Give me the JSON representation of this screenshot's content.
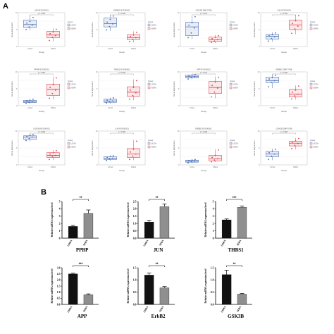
{
  "panel_labels": {
    "a": "A",
    "b": "B"
  },
  "colors": {
    "g1": "#4a6fb5",
    "g2": "#e0414e",
    "bar_dark": "#111111",
    "bar_light": "#8f8f8f",
    "panel_bg": "#ffffff"
  },
  "boxplot_common": {
    "xlabel": "Group",
    "ylabel": "Gene Expression",
    "legend_title": "Group",
    "groups": [
      "UCSA",
      "NSRA"
    ]
  },
  "chart_data": [
    {
      "type": "boxplot",
      "panel": "A",
      "title": "APH   BYD00001",
      "pvalue": "0.006",
      "ylim": [
        0,
        10
      ],
      "legend": "right",
      "groups": [
        {
          "name": "UCSA",
          "q1": 5.6,
          "median": 6.5,
          "q3": 7.8,
          "whisker_low": 4.8,
          "whisker_high": 9.2,
          "points": [
            5.0,
            5.8,
            6.3,
            6.9,
            7.4,
            8.6
          ]
        },
        {
          "name": "NSRA",
          "q1": 2.6,
          "median": 3.4,
          "q3": 4.5,
          "whisker_low": 1.5,
          "whisker_high": 5.4,
          "points": [
            1.8,
            2.7,
            3.2,
            3.8,
            4.3,
            5.1
          ]
        }
      ]
    },
    {
      "type": "boxplot",
      "panel": "A",
      "title": "ERBB2   BYD00001",
      "pvalue": "0.009",
      "ylim": [
        0,
        10
      ],
      "legend": "right",
      "groups": [
        {
          "name": "UCSA",
          "q1": 5.8,
          "median": 6.8,
          "q3": 8.4,
          "whisker_low": 4.6,
          "whisker_high": 9.3,
          "points": [
            4.9,
            5.9,
            6.7,
            7.2,
            8.0,
            9.0
          ]
        },
        {
          "name": "NSRA",
          "q1": 2.0,
          "median": 2.6,
          "q3": 3.5,
          "whisker_low": 1.2,
          "whisker_high": 4.5,
          "points": [
            1.5,
            2.1,
            2.6,
            3.0,
            3.4,
            4.2
          ]
        }
      ]
    },
    {
      "type": "boxplot",
      "panel": "A",
      "title": "GSK3B   DBP 0788",
      "pvalue": "0.014",
      "ylim": [
        0,
        10
      ],
      "legend": "right",
      "groups": [
        {
          "name": "UCSA",
          "q1": 3.2,
          "median": 5.8,
          "q3": 7.2,
          "whisker_low": 2.2,
          "whisker_high": 9.0,
          "points": [
            2.6,
            4.0,
            5.5,
            6.3,
            7.0,
            8.8
          ]
        },
        {
          "name": "NSRA",
          "q1": 1.5,
          "median": 2.0,
          "q3": 2.8,
          "whisker_low": 1.0,
          "whisker_high": 3.4,
          "points": [
            1.2,
            1.6,
            2.0,
            2.3,
            2.7,
            3.2
          ]
        }
      ]
    },
    {
      "type": "boxplot",
      "panel": "A",
      "title": "JUN   BYD00001",
      "pvalue": "0.006",
      "ylim": [
        0,
        10
      ],
      "legend": "right",
      "groups": [
        {
          "name": "UCSA",
          "q1": 2.2,
          "median": 3.0,
          "q3": 3.6,
          "whisker_low": 1.4,
          "whisker_high": 4.2,
          "points": [
            1.6,
            2.4,
            2.9,
            3.2,
            3.5,
            4.0
          ]
        },
        {
          "name": "NSRA",
          "q1": 5.0,
          "median": 6.4,
          "q3": 7.8,
          "whisker_low": 3.6,
          "whisker_high": 9.4,
          "points": [
            3.9,
            5.2,
            6.0,
            6.8,
            7.6,
            9.1
          ]
        }
      ]
    },
    {
      "type": "boxplot",
      "panel": "A",
      "title": "PPBP   BYD00001",
      "pvalue": "0.006",
      "ylim": [
        0,
        10
      ],
      "legend": "right",
      "groups": [
        {
          "name": "UCSA",
          "q1": 0.9,
          "median": 1.2,
          "q3": 1.6,
          "whisker_low": 0.6,
          "whisker_high": 2.0,
          "points": [
            0.7,
            1.0,
            1.2,
            1.4,
            1.6,
            1.9
          ]
        },
        {
          "name": "NSRA",
          "q1": 3.0,
          "median": 4.8,
          "q3": 6.4,
          "whisker_low": 1.8,
          "whisker_high": 8.6,
          "points": [
            2.2,
            3.6,
            4.6,
            5.4,
            6.2,
            8.2
          ]
        }
      ]
    },
    {
      "type": "boxplot",
      "panel": "A",
      "title": "THBS1   BYD00001",
      "pvalue": "0.006",
      "ylim": [
        0,
        10
      ],
      "legend": "right",
      "groups": [
        {
          "name": "UCSA",
          "q1": 1.0,
          "median": 1.4,
          "q3": 1.9,
          "whisker_low": 0.6,
          "whisker_high": 2.4,
          "points": [
            0.8,
            1.1,
            1.4,
            1.6,
            1.9,
            2.3
          ]
        },
        {
          "name": "NSRA",
          "q1": 2.8,
          "median": 4.0,
          "q3": 5.6,
          "whisker_low": 1.6,
          "whisker_high": 7.8,
          "points": [
            1.9,
            3.0,
            3.8,
            4.6,
            5.4,
            7.4
          ]
        }
      ]
    },
    {
      "type": "boxplot",
      "panel": "A",
      "title": "APP   BYD00001",
      "pvalue": "0.014",
      "ylim": [
        0,
        10
      ],
      "legend": "right",
      "groups": [
        {
          "name": "UCSA",
          "q1": 8.2,
          "median": 8.6,
          "q3": 9.0,
          "whisker_low": 7.8,
          "whisker_high": 9.3,
          "points": [
            7.9,
            8.3,
            8.6,
            8.8,
            9.0,
            9.2
          ]
        },
        {
          "name": "NSRA",
          "q1": 3.6,
          "median": 5.4,
          "q3": 7.2,
          "whisker_low": 2.2,
          "whisker_high": 8.6,
          "points": [
            2.6,
            4.0,
            5.2,
            6.0,
            7.0,
            8.4
          ]
        }
      ]
    },
    {
      "type": "boxplot",
      "panel": "A",
      "title": "ERBB2   DBP 0788",
      "pvalue": "0.006",
      "ylim": [
        0,
        10
      ],
      "legend": "right",
      "groups": [
        {
          "name": "UCSA",
          "q1": 6.8,
          "median": 7.4,
          "q3": 8.4,
          "whisker_low": 5.2,
          "whisker_high": 9.2,
          "points": [
            5.6,
            6.9,
            7.4,
            7.9,
            8.3,
            9.0
          ]
        },
        {
          "name": "NSRA",
          "q1": 2.6,
          "median": 3.4,
          "q3": 4.8,
          "whisker_low": 1.8,
          "whisker_high": 6.0,
          "points": [
            2.0,
            2.9,
            3.4,
            4.0,
            4.6,
            5.8
          ]
        }
      ]
    },
    {
      "type": "boxplot",
      "panel": "A",
      "title": "GSK3B   BYD00001",
      "pvalue": "0.006",
      "ylim": [
        0,
        10
      ],
      "legend": "right",
      "groups": [
        {
          "name": "UCSA",
          "q1": 7.6,
          "median": 8.2,
          "q3": 8.6,
          "whisker_low": 7.0,
          "whisker_high": 9.2,
          "points": [
            7.2,
            7.8,
            8.2,
            8.4,
            8.7,
            9.0
          ]
        },
        {
          "name": "NSRA",
          "q1": 2.2,
          "median": 2.8,
          "q3": 3.6,
          "whisker_low": 1.4,
          "whisker_high": 4.4,
          "points": [
            1.6,
            2.4,
            2.8,
            3.2,
            3.6,
            4.2
          ]
        }
      ]
    },
    {
      "type": "boxplot",
      "panel": "A",
      "title": "JUN   BYD00001",
      "pvalue": "0.006",
      "ylim": [
        0,
        10
      ],
      "legend": "right",
      "groups": [
        {
          "name": "UCSA",
          "q1": 1.6,
          "median": 2.0,
          "q3": 2.4,
          "whisker_low": 1.2,
          "whisker_high": 2.8,
          "points": [
            1.3,
            1.7,
            2.0,
            2.2,
            2.5,
            2.7
          ]
        },
        {
          "name": "NSRA",
          "q1": 2.2,
          "median": 3.2,
          "q3": 4.8,
          "whisker_low": 1.4,
          "whisker_high": 7.4,
          "points": [
            1.6,
            2.6,
            3.2,
            3.8,
            4.6,
            7.0
          ]
        }
      ]
    },
    {
      "type": "boxplot",
      "panel": "A",
      "title": "ERBB2   BYD00001",
      "pvalue": "0.026",
      "ylim": [
        0,
        10
      ],
      "legend": "right",
      "groups": [
        {
          "name": "UCSA",
          "q1": 0.8,
          "median": 1.1,
          "q3": 1.4,
          "whisker_low": 0.5,
          "whisker_high": 1.7,
          "points": [
            0.6,
            0.9,
            1.1,
            1.2,
            1.4,
            1.6
          ]
        },
        {
          "name": "NSRA",
          "q1": 1.2,
          "median": 1.8,
          "q3": 2.8,
          "whisker_low": 0.8,
          "whisker_high": 4.6,
          "points": [
            0.9,
            1.4,
            1.8,
            2.2,
            2.8,
            4.4
          ]
        }
      ]
    },
    {
      "type": "boxplot",
      "panel": "A",
      "title": "GSK3B   DBP 0788",
      "pvalue": "0.006",
      "ylim": [
        0,
        10
      ],
      "legend": "right",
      "groups": [
        {
          "name": "UCSA",
          "q1": 2.4,
          "median": 3.2,
          "q3": 4.0,
          "whisker_low": 1.4,
          "whisker_high": 4.8,
          "points": [
            1.6,
            2.6,
            3.2,
            3.6,
            4.0,
            4.6
          ]
        },
        {
          "name": "NSRA",
          "q1": 5.6,
          "median": 6.4,
          "q3": 7.0,
          "whisker_low": 4.6,
          "whisker_high": 8.0,
          "points": [
            4.8,
            5.8,
            6.3,
            6.7,
            7.1,
            7.8
          ]
        }
      ]
    },
    {
      "type": "bar",
      "panel": "B",
      "gene": "PPBP",
      "ylabel": "Relative mRNA expression level",
      "ylim": [
        0,
        5
      ],
      "yticks": [
        0,
        1,
        2,
        3,
        4,
        5
      ],
      "categories": [
        "UDRA",
        "SEBA"
      ],
      "values": [
        1.6,
        3.4
      ],
      "errors": [
        0.15,
        0.45
      ],
      "significance": "**"
    },
    {
      "type": "bar",
      "panel": "B",
      "gene": "JUN",
      "ylabel": "Relative mRNA expression level",
      "ylim": [
        0,
        2.5
      ],
      "yticks": [
        0.0,
        0.5,
        1.0,
        1.5,
        2.0,
        2.5
      ],
      "categories": [
        "UDRA",
        "SEBA"
      ],
      "values": [
        1.1,
        2.15
      ],
      "errors": [
        0.12,
        0.18
      ],
      "significance": "**"
    },
    {
      "type": "bar",
      "panel": "B",
      "gene": "THBS1",
      "ylabel": "Relative mRNA expression level",
      "ylim": [
        0,
        5
      ],
      "yticks": [
        0,
        1,
        2,
        3,
        4,
        5
      ],
      "categories": [
        "UDRA",
        "SEBA"
      ],
      "values": [
        2.5,
        4.2
      ],
      "errors": [
        0.12,
        0.2
      ],
      "significance": "***"
    },
    {
      "type": "bar",
      "panel": "B",
      "gene": "APP",
      "ylabel": "Relative mRNA expression level",
      "ylim": [
        0,
        3.0
      ],
      "yticks": [
        0.0,
        0.5,
        1.0,
        1.5,
        2.0,
        2.5,
        3.0
      ],
      "categories": [
        "UDRA",
        "SEBA"
      ],
      "values": [
        2.5,
        0.8
      ],
      "errors": [
        0.06,
        0.06
      ],
      "significance": "***"
    },
    {
      "type": "bar",
      "panel": "B",
      "gene": "ErbB2",
      "ylabel": "Relative mRNA expression level",
      "ylim": [
        0,
        1.5
      ],
      "yticks": [
        0.0,
        0.5,
        1.0,
        1.5
      ],
      "categories": [
        "UDRA",
        "SEBA"
      ],
      "values": [
        1.2,
        0.68
      ],
      "errors": [
        0.09,
        0.05
      ],
      "significance": "**"
    },
    {
      "type": "bar",
      "panel": "B",
      "gene": "GSK3B",
      "ylabel": "Relative mRNA expression level",
      "ylim": [
        0,
        1.5
      ],
      "yticks": [
        0.0,
        0.5,
        1.0,
        1.5
      ],
      "categories": [
        "UDRA",
        "SEBA"
      ],
      "values": [
        1.22,
        0.42
      ],
      "errors": [
        0.18,
        0.03
      ],
      "significance": "**"
    }
  ]
}
